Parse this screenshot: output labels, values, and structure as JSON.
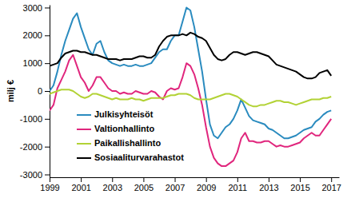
{
  "chart_data": {
    "type": "line",
    "ylabel": "milj €",
    "x": [
      1999,
      1999.25,
      1999.5,
      1999.75,
      2000,
      2000.25,
      2000.5,
      2000.75,
      2001,
      2001.25,
      2001.5,
      2001.75,
      2002,
      2002.25,
      2002.5,
      2002.75,
      2003,
      2003.25,
      2003.5,
      2003.75,
      2004,
      2004.25,
      2004.5,
      2004.75,
      2005,
      2005.25,
      2005.5,
      2005.75,
      2006,
      2006.25,
      2006.5,
      2006.75,
      2007,
      2007.25,
      2007.5,
      2007.75,
      2008,
      2008.25,
      2008.5,
      2008.75,
      2009,
      2009.25,
      2009.5,
      2009.75,
      2010,
      2010.25,
      2010.5,
      2010.75,
      2011,
      2011.25,
      2011.5,
      2011.75,
      2012,
      2012.25,
      2012.5,
      2012.75,
      2013,
      2013.25,
      2013.5,
      2013.75,
      2014,
      2014.25,
      2014.5,
      2014.75,
      2015,
      2015.25,
      2015.5,
      2015.75,
      2016,
      2016.25,
      2016.5,
      2016.75,
      2017
    ],
    "xlim": [
      1999,
      2017.5
    ],
    "xticks": [
      1999,
      2001,
      2003,
      2005,
      2007,
      2009,
      2011,
      2013,
      2015,
      2017
    ],
    "ylim": [
      -3100,
      3100
    ],
    "yticks": [
      -3000,
      -2000,
      -1000,
      0,
      1000,
      2000,
      3000
    ],
    "grid": false,
    "legend": "lower left",
    "series": [
      {
        "name": "Julkisyhteisöt",
        "color": "#2a8bbf",
        "values": [
          0,
          200,
          700,
          1300,
          1800,
          2200,
          2600,
          2800,
          2300,
          1900,
          1500,
          1300,
          1700,
          1800,
          1400,
          1100,
          1000,
          950,
          900,
          950,
          900,
          900,
          950,
          900,
          900,
          950,
          1000,
          1200,
          1400,
          1500,
          1500,
          1800,
          2000,
          2000,
          2500,
          3000,
          2900,
          2300,
          1500,
          700,
          -300,
          -1200,
          -1600,
          -1700,
          -1500,
          -1300,
          -1200,
          -1000,
          -700,
          -300,
          -600,
          -900,
          -1050,
          -1100,
          -1150,
          -1200,
          -1350,
          -1400,
          -1500,
          -1600,
          -1700,
          -1700,
          -1650,
          -1600,
          -1500,
          -1400,
          -1350,
          -1300,
          -1100,
          -1000,
          -850,
          -750,
          -700
        ]
      },
      {
        "name": "Valtionhallinto",
        "color": "#e0267d",
        "values": [
          -700,
          -500,
          100,
          400,
          700,
          1100,
          1300,
          900,
          500,
          300,
          0,
          200,
          500,
          500,
          300,
          100,
          0,
          0,
          -100,
          -50,
          -100,
          -100,
          0,
          -50,
          -100,
          -100,
          0,
          -50,
          -200,
          -300,
          0,
          100,
          50,
          100,
          500,
          1000,
          900,
          600,
          100,
          -500,
          -1300,
          -2000,
          -2400,
          -2600,
          -2700,
          -2700,
          -2600,
          -2500,
          -2200,
          -1700,
          -1500,
          -1800,
          -1800,
          -1850,
          -1850,
          -1800,
          -1800,
          -1900,
          -2000,
          -1950,
          -2000,
          -2000,
          -1950,
          -1900,
          -1850,
          -1700,
          -1600,
          -1500,
          -1600,
          -1600,
          -1400,
          -1200,
          -1000
        ]
      },
      {
        "name": "Paikallishallinto",
        "color": "#b2d235",
        "values": [
          -100,
          -50,
          0,
          50,
          50,
          50,
          0,
          -100,
          -200,
          -250,
          -200,
          -100,
          -100,
          -150,
          -200,
          -250,
          -300,
          -250,
          -300,
          -300,
          -300,
          -250,
          -300,
          -300,
          -350,
          -300,
          -250,
          -250,
          -250,
          -250,
          -200,
          -150,
          -150,
          -100,
          -100,
          -100,
          -150,
          -250,
          -300,
          -300,
          -300,
          -300,
          -250,
          -200,
          -150,
          -100,
          -100,
          -150,
          -200,
          -300,
          -400,
          -500,
          -550,
          -550,
          -500,
          -500,
          -450,
          -400,
          -350,
          -350,
          -400,
          -400,
          -450,
          -500,
          -450,
          -400,
          -350,
          -300,
          -300,
          -300,
          -250,
          -250,
          -200
        ]
      },
      {
        "name": "Sosiaaliturvarahastot",
        "color": "#000000",
        "values": [
          900,
          950,
          1000,
          1200,
          1350,
          1400,
          1450,
          1450,
          1400,
          1400,
          1350,
          1300,
          1300,
          1250,
          1200,
          1150,
          1150,
          1150,
          1100,
          1150,
          1150,
          1150,
          1200,
          1250,
          1250,
          1200,
          1200,
          1300,
          1600,
          1800,
          1950,
          2000,
          2000,
          2000,
          2050,
          2000,
          2100,
          2050,
          1950,
          1900,
          1800,
          1550,
          1300,
          1150,
          1100,
          1150,
          1300,
          1400,
          1400,
          1350,
          1300,
          1350,
          1400,
          1400,
          1350,
          1300,
          1250,
          1100,
          950,
          900,
          850,
          800,
          750,
          700,
          600,
          500,
          450,
          450,
          500,
          650,
          700,
          750,
          550
        ]
      }
    ]
  }
}
